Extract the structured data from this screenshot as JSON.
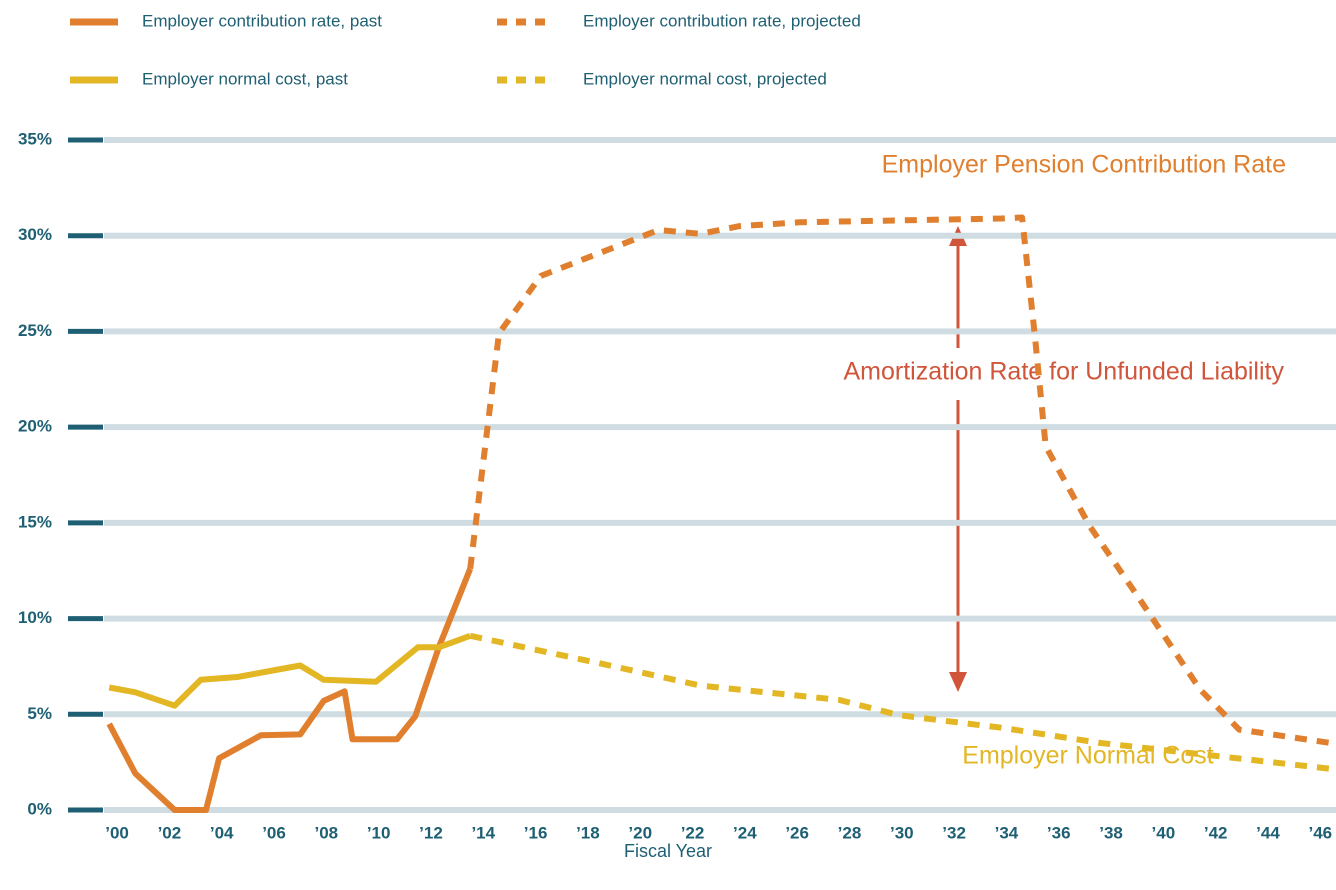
{
  "chart_data": {
    "type": "line",
    "x_label": "Fiscal Year",
    "xlim": [
      1999.5,
      2046.6
    ],
    "ylim": [
      0,
      35
    ],
    "grid": true,
    "xticks": [
      {
        "value": 2000,
        "label": "’00"
      },
      {
        "value": 2002,
        "label": "’02"
      },
      {
        "value": 2004,
        "label": "’04"
      },
      {
        "value": 2006,
        "label": "’06"
      },
      {
        "value": 2008,
        "label": "’08"
      },
      {
        "value": 2010,
        "label": "’10"
      },
      {
        "value": 2012,
        "label": "’12"
      },
      {
        "value": 2014,
        "label": "’14"
      },
      {
        "value": 2016,
        "label": "’16"
      },
      {
        "value": 2018,
        "label": "’18"
      },
      {
        "value": 2020,
        "label": "’20"
      },
      {
        "value": 2022,
        "label": "’22"
      },
      {
        "value": 2024,
        "label": "’24"
      },
      {
        "value": 2026,
        "label": "’26"
      },
      {
        "value": 2028,
        "label": "’28"
      },
      {
        "value": 2030,
        "label": "’30"
      },
      {
        "value": 2032,
        "label": "’32"
      },
      {
        "value": 2034,
        "label": "’34"
      },
      {
        "value": 2036,
        "label": "’36"
      },
      {
        "value": 2038,
        "label": "’38"
      },
      {
        "value": 2040,
        "label": "’40"
      },
      {
        "value": 2042,
        "label": "’42"
      },
      {
        "value": 2044,
        "label": "’44"
      },
      {
        "value": 2046,
        "label": "’46"
      }
    ],
    "yticks": [
      {
        "value": 0,
        "label": "0%"
      },
      {
        "value": 5,
        "label": "5%"
      },
      {
        "value": 10,
        "label": "10%"
      },
      {
        "value": 15,
        "label": "15%"
      },
      {
        "value": 20,
        "label": "20%"
      },
      {
        "value": 25,
        "label": "25%"
      },
      {
        "value": 30,
        "label": "30%"
      },
      {
        "value": 35,
        "label": "35%"
      }
    ],
    "series": [
      {
        "name": "Employer contribution rate, past",
        "color": "#e07f2e",
        "dashed": false,
        "x": [
          1999.7,
          2000.7,
          2002.2,
          2003.4,
          2003.9,
          2005.5,
          2007.0,
          2007.9,
          2008.7,
          2009.0,
          2010.7,
          2011.4,
          2012.3,
          2013.5
        ],
        "values": [
          4.5,
          1.9,
          0,
          0,
          2.7,
          3.9,
          3.95,
          5.7,
          6.2,
          3.7,
          3.7,
          4.9,
          8.5,
          12.6
        ]
      },
      {
        "name": "Employer contribution rate, projected",
        "color": "#e07f2e",
        "dashed": true,
        "x": [
          2013.5,
          2014.6,
          2016.2,
          2019.2,
          2020.7,
          2022.3,
          2023.8,
          2026.1,
          2029.9,
          2033.8,
          2034.6,
          2035.1,
          2035.5,
          2037.2,
          2039.1,
          2041.4,
          2042.9,
          2046.4
        ],
        "values": [
          12.6,
          24.9,
          27.9,
          29.5,
          30.3,
          30.1,
          30.5,
          30.7,
          30.8,
          30.9,
          30.95,
          24.6,
          19.0,
          14.8,
          11.0,
          6.3,
          4.2,
          3.5
        ]
      },
      {
        "name": "Employer normal cost, past",
        "color": "#e3b624",
        "dashed": false,
        "x": [
          1999.7,
          2000.7,
          2002.2,
          2003.2,
          2004.6,
          2007.0,
          2007.9,
          2009.9,
          2011.5,
          2012.3,
          2013.5
        ],
        "values": [
          6.4,
          6.15,
          5.45,
          6.8,
          6.95,
          7.55,
          6.8,
          6.7,
          8.5,
          8.5,
          9.1
        ]
      },
      {
        "name": "Employer normal cost, projected",
        "color": "#e3b624",
        "dashed": true,
        "x": [
          2013.5,
          2018.5,
          2022.3,
          2027.6,
          2029.9,
          2033.8,
          2037.6,
          2046.4
        ],
        "values": [
          9.1,
          7.65,
          6.5,
          5.75,
          4.95,
          4.3,
          3.5,
          2.15
        ]
      }
    ],
    "annotations": [
      {
        "text": "Employer Pension Contribution Rate",
        "color": "#e07f2e"
      },
      {
        "text": "Amortization Rate for Unfunded Liability",
        "color": "#d0553a"
      },
      {
        "text": "Employer Normal Cost",
        "color": "#e3b624"
      }
    ]
  }
}
